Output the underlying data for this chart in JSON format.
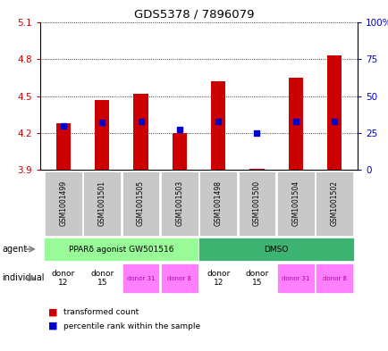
{
  "title": "GDS5378 / 7896079",
  "samples": [
    "GSM1001499",
    "GSM1001501",
    "GSM1001505",
    "GSM1001503",
    "GSM1001498",
    "GSM1001500",
    "GSM1001504",
    "GSM1001502"
  ],
  "red_values": [
    4.28,
    4.47,
    4.52,
    4.2,
    4.62,
    3.905,
    4.65,
    4.83
  ],
  "blue_values_pct": [
    30,
    32,
    33,
    27,
    33,
    25,
    33,
    33
  ],
  "ylim": [
    3.9,
    5.1
  ],
  "y2lim": [
    0,
    100
  ],
  "yticks": [
    3.9,
    4.2,
    4.5,
    4.8,
    5.1
  ],
  "y2ticks": [
    0,
    25,
    50,
    75,
    100
  ],
  "y2ticklabels": [
    "0",
    "25",
    "50",
    "75",
    "100%"
  ],
  "bar_bottom": 3.9,
  "agent_labels": [
    "PPARδ agonist GW501516",
    "DMSO"
  ],
  "agent_color_light_green": "#98FB98",
  "agent_color_green": "#3CB371",
  "individual_labels": [
    "donor\n12",
    "donor\n15",
    "donor 31",
    "donor 8",
    "donor\n12",
    "donor\n15",
    "donor 31",
    "donor 8"
  ],
  "individual_colors": [
    "#ffffff",
    "#ffffff",
    "#FF80FF",
    "#FF80FF",
    "#ffffff",
    "#ffffff",
    "#FF80FF",
    "#FF80FF"
  ],
  "individual_fontcolors": [
    "#000000",
    "#000000",
    "#AA00AA",
    "#AA00AA",
    "#000000",
    "#000000",
    "#AA00AA",
    "#AA00AA"
  ],
  "gsm_bg_color": "#C8C8C8",
  "red_color": "#CC0000",
  "blue_color": "#0000CC",
  "legend_red": "transformed count",
  "legend_blue": "percentile rank within the sample"
}
